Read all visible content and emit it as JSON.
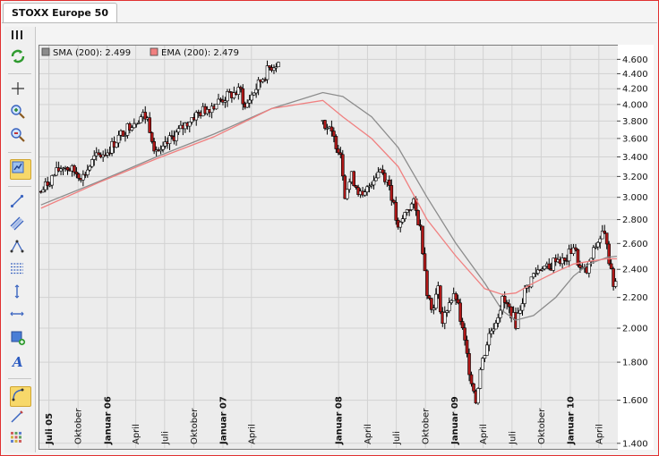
{
  "window": {
    "tab_title": "STOXX Europe 50"
  },
  "toolbar": {
    "buttons": [
      {
        "icon": "grip-icon"
      },
      {
        "icon": "refresh-icon"
      },
      {
        "icon": "crosshair-icon"
      },
      {
        "icon": "zoom-in-icon"
      },
      {
        "icon": "zoom-out-icon"
      },
      {
        "icon": "indicator-icon"
      },
      {
        "icon": "trendline-icon"
      },
      {
        "icon": "channel-icon"
      },
      {
        "icon": "pattern-icon"
      },
      {
        "icon": "fibonacci-icon"
      },
      {
        "icon": "vertical-line-icon"
      },
      {
        "icon": "horizontal-line-icon"
      },
      {
        "icon": "rectangle-add-icon"
      },
      {
        "icon": "text-icon"
      },
      {
        "icon": "arc-icon"
      },
      {
        "icon": "pencil-icon"
      },
      {
        "icon": "grid-icon"
      }
    ]
  },
  "chart_data": {
    "type": "candlestick",
    "title": "",
    "y_scale": "log",
    "ylim": [
      1380,
      4800
    ],
    "y_ticks": [
      1400,
      1600,
      1800,
      2000,
      2200,
      2400,
      2600,
      2800,
      3000,
      3200,
      3400,
      3600,
      3800,
      4000,
      4200,
      4400,
      4600
    ],
    "y_tick_labels": [
      "1.400",
      "1.600",
      "1.800",
      "2.000",
      "2.200",
      "2.400",
      "2.600",
      "2.800",
      "3.000",
      "3.200",
      "3.400",
      "3.600",
      "3.800",
      "4.000",
      "4.200",
      "4.400",
      "4.600"
    ],
    "xlim": [
      "2005-06-01",
      "2010-05-28"
    ],
    "x_ticks": [
      {
        "date": "2005-07-01",
        "label": "Juli 05",
        "bold": true
      },
      {
        "date": "2005-10-01",
        "label": "Oktober",
        "bold": false
      },
      {
        "date": "2006-01-01",
        "label": "Januar 06",
        "bold": true
      },
      {
        "date": "2006-04-01",
        "label": "April",
        "bold": false
      },
      {
        "date": "2006-07-01",
        "label": "Juli",
        "bold": false
      },
      {
        "date": "2006-10-01",
        "label": "Oktober",
        "bold": false
      },
      {
        "date": "2007-01-01",
        "label": "Januar 07",
        "bold": true
      },
      {
        "date": "2007-04-01",
        "label": "April",
        "bold": false
      },
      {
        "date": "2008-01-01",
        "label": "Januar 08",
        "bold": true
      },
      {
        "date": "2008-04-01",
        "label": "April",
        "bold": false
      },
      {
        "date": "2008-07-01",
        "label": "Juli",
        "bold": false
      },
      {
        "date": "2008-10-01",
        "label": "Oktober",
        "bold": false
      },
      {
        "date": "2009-01-01",
        "label": "Januar 09",
        "bold": true
      },
      {
        "date": "2009-04-01",
        "label": "April",
        "bold": false
      },
      {
        "date": "2009-07-01",
        "label": "Juli",
        "bold": false
      },
      {
        "date": "2009-10-01",
        "label": "Oktober",
        "bold": false
      },
      {
        "date": "2010-01-01",
        "label": "Januar 10",
        "bold": true
      },
      {
        "date": "2010-04-01",
        "label": "April",
        "bold": false
      }
    ],
    "grid": true,
    "legend": {
      "position": "top-left",
      "entries": [
        {
          "label": "SMA (200): 2.499",
          "color": "#8c8c8c"
        },
        {
          "label": "EMA (200): 2.479",
          "color": "#f08080"
        }
      ]
    },
    "colors": {
      "up": "#ffffff",
      "down": "#b01818",
      "wick": "#000000"
    },
    "price_path": [
      [
        "2005-06-06",
        3050
      ],
      [
        "2005-07-11",
        3190
      ],
      [
        "2005-08-15",
        3310
      ],
      [
        "2005-09-12",
        3260
      ],
      [
        "2005-10-17",
        3200
      ],
      [
        "2005-11-21",
        3380
      ],
      [
        "2006-01-02",
        3460
      ],
      [
        "2006-02-13",
        3640
      ],
      [
        "2006-03-20",
        3780
      ],
      [
        "2006-04-24",
        3870
      ],
      [
        "2006-05-08",
        3820
      ],
      [
        "2006-05-29",
        3520
      ],
      [
        "2006-06-19",
        3430
      ],
      [
        "2006-07-17",
        3580
      ],
      [
        "2006-08-21",
        3700
      ],
      [
        "2006-09-25",
        3840
      ],
      [
        "2006-10-30",
        3920
      ],
      [
        "2006-12-04",
        4000
      ],
      [
        "2007-01-15",
        4100
      ],
      [
        "2007-02-26",
        4170
      ],
      [
        "2007-03-12",
        3950
      ],
      [
        "2007-03-26",
        4070
      ],
      [
        "2007-04-30",
        4300
      ],
      [
        "2007-05-28",
        4480
      ],
      [
        "2007-06-11",
        4520
      ],
      [
        "2007-06-25",
        4560
      ],
      [
        "2007-11-12",
        3810
      ],
      [
        "2007-12-10",
        3640
      ],
      [
        "2008-01-07",
        3450
      ],
      [
        "2008-01-21",
        3040
      ],
      [
        "2008-02-11",
        3200
      ],
      [
        "2008-03-17",
        2980
      ],
      [
        "2008-04-14",
        3160
      ],
      [
        "2008-05-12",
        3280
      ],
      [
        "2008-06-09",
        3120
      ],
      [
        "2008-07-07",
        2700
      ],
      [
        "2008-08-04",
        2900
      ],
      [
        "2008-08-25",
        2940
      ],
      [
        "2008-09-15",
        2720
      ],
      [
        "2008-10-06",
        2250
      ],
      [
        "2008-10-20",
        2120
      ],
      [
        "2008-11-10",
        2250
      ],
      [
        "2008-11-24",
        2030
      ],
      [
        "2008-12-15",
        2180
      ],
      [
        "2009-01-05",
        2200
      ],
      [
        "2009-01-26",
        1980
      ],
      [
        "2009-02-16",
        1760
      ],
      [
        "2009-03-09",
        1600
      ],
      [
        "2009-03-23",
        1760
      ],
      [
        "2009-04-20",
        1960
      ],
      [
        "2009-05-11",
        2050
      ],
      [
        "2009-06-01",
        2180
      ],
      [
        "2009-06-29",
        2100
      ],
      [
        "2009-07-13",
        2030
      ],
      [
        "2009-08-10",
        2240
      ],
      [
        "2009-09-07",
        2360
      ],
      [
        "2009-10-05",
        2430
      ],
      [
        "2009-10-26",
        2390
      ],
      [
        "2009-11-16",
        2490
      ],
      [
        "2009-12-14",
        2450
      ],
      [
        "2010-01-11",
        2580
      ],
      [
        "2010-02-01",
        2400
      ],
      [
        "2010-02-22",
        2380
      ],
      [
        "2010-03-22",
        2580
      ],
      [
        "2010-04-12",
        2680
      ],
      [
        "2010-04-26",
        2630
      ],
      [
        "2010-05-07",
        2400
      ],
      [
        "2010-05-17",
        2290
      ],
      [
        "2010-05-28",
        2320
      ]
    ],
    "sma_200": [
      [
        "2005-06-06",
        2930
      ],
      [
        "2005-12-05",
        3150
      ],
      [
        "2006-06-05",
        3400
      ],
      [
        "2006-12-04",
        3650
      ],
      [
        "2007-06-04",
        3950
      ],
      [
        "2007-11-12",
        4150
      ],
      [
        "2008-01-14",
        4100
      ],
      [
        "2008-04-14",
        3850
      ],
      [
        "2008-07-07",
        3500
      ],
      [
        "2008-10-06",
        3000
      ],
      [
        "2009-01-05",
        2600
      ],
      [
        "2009-04-06",
        2300
      ],
      [
        "2009-06-01",
        2110
      ],
      [
        "2009-07-13",
        2050
      ],
      [
        "2009-09-07",
        2080
      ],
      [
        "2009-11-16",
        2200
      ],
      [
        "2010-01-11",
        2350
      ],
      [
        "2010-03-01",
        2440
      ],
      [
        "2010-04-26",
        2490
      ],
      [
        "2010-05-28",
        2499
      ]
    ],
    "ema_200": [
      [
        "2005-06-06",
        2900
      ],
      [
        "2005-12-05",
        3140
      ],
      [
        "2006-06-05",
        3380
      ],
      [
        "2006-12-04",
        3620
      ],
      [
        "2007-06-04",
        3950
      ],
      [
        "2007-11-12",
        4050
      ],
      [
        "2008-01-14",
        3850
      ],
      [
        "2008-04-14",
        3600
      ],
      [
        "2008-07-07",
        3300
      ],
      [
        "2008-10-06",
        2800
      ],
      [
        "2009-01-05",
        2500
      ],
      [
        "2009-04-06",
        2260
      ],
      [
        "2009-06-01",
        2220
      ],
      [
        "2009-07-13",
        2230
      ],
      [
        "2009-09-07",
        2300
      ],
      [
        "2009-11-16",
        2380
      ],
      [
        "2010-01-11",
        2440
      ],
      [
        "2010-03-01",
        2460
      ],
      [
        "2010-04-26",
        2480
      ],
      [
        "2010-05-28",
        2479
      ]
    ]
  }
}
